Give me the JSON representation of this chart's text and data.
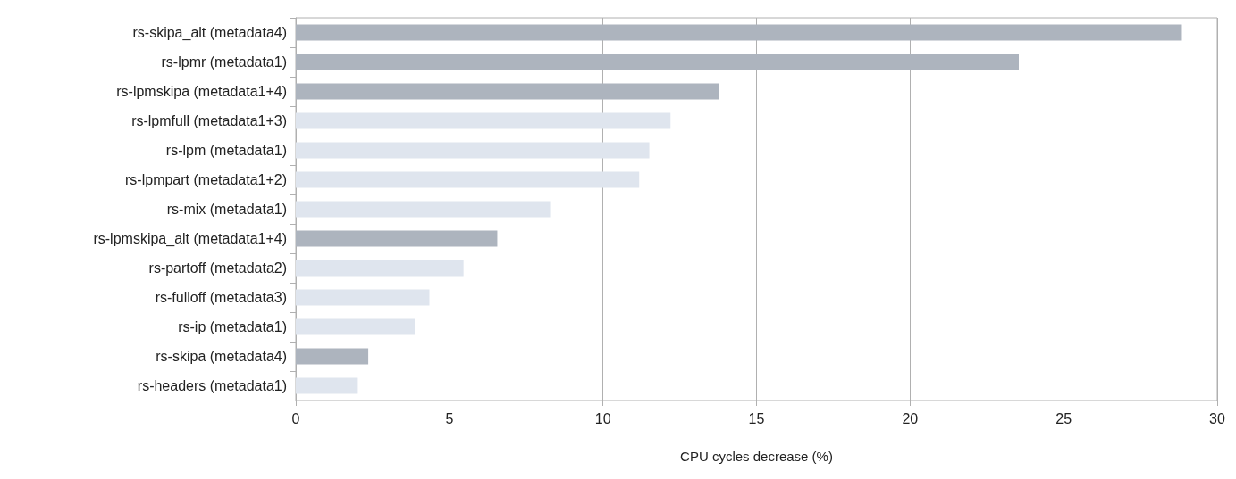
{
  "chart_data": {
    "type": "bar",
    "orientation": "horizontal",
    "xlabel": "CPU cycles decrease (%)",
    "categories": [
      "rs-skipa_alt (metadata4)",
      "rs-lpmr (metadata1)",
      "rs-lpmskipa (metadata1+4)",
      "rs-lpmfull (metadata1+3)",
      "rs-lpm (metadata1)",
      "rs-lpmpart (metadata1+2)",
      "rs-mix (metadata1)",
      "rs-lpmskipa_alt (metadata1+4)",
      "rs-partoff (metadata2)",
      "rs-fulloff (metadata3)",
      "rs-ip (metadata1)",
      "rs-skipa (metadata4)",
      "rs-headers (metadata1)"
    ],
    "values": [
      28.85,
      23.54,
      13.77,
      12.2,
      11.51,
      11.18,
      8.28,
      6.56,
      5.46,
      4.35,
      3.87,
      2.36,
      2.02
    ],
    "colors": [
      "#adb4be",
      "#adb4be",
      "#adb4be",
      "#dfe5ee",
      "#dfe5ee",
      "#dfe5ee",
      "#dfe5ee",
      "#adb4be",
      "#dfe5ee",
      "#dfe5ee",
      "#dfe5ee",
      "#adb4be",
      "#dfe5ee"
    ],
    "xlim": [
      0,
      30
    ],
    "xticks": [
      0,
      5,
      10,
      15,
      20,
      25,
      30
    ],
    "grid": "x"
  }
}
